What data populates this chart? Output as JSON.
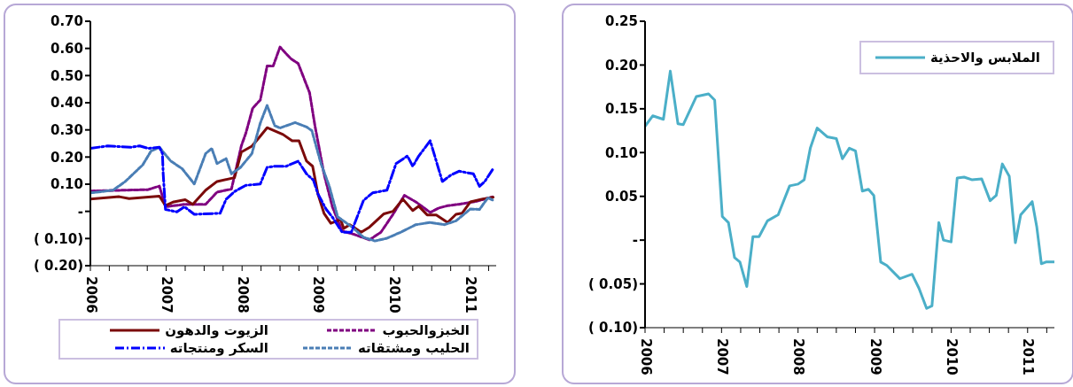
{
  "chart_data": [
    {
      "type": "line",
      "legend": "bottom",
      "xlim": [
        2006,
        2011.35
      ],
      "ylim": [
        -0.2,
        0.7
      ],
      "xticks": [
        2006,
        {
          "value": 2006.25,
          "label": null
        },
        {
          "value": 2006.5,
          "label": null
        },
        {
          "value": 2006.75,
          "label": null
        },
        2007,
        {
          "value": 2007.25,
          "label": null
        },
        {
          "value": 2007.5,
          "label": null
        },
        {
          "value": 2007.75,
          "label": null
        },
        2008,
        {
          "value": 2008.25,
          "label": null
        },
        {
          "value": 2008.5,
          "label": null
        },
        {
          "value": 2008.75,
          "label": null
        },
        2009,
        {
          "value": 2009.25,
          "label": null
        },
        {
          "value": 2009.5,
          "label": null
        },
        {
          "value": 2009.75,
          "label": null
        },
        2010,
        {
          "value": 2010.25,
          "label": null
        },
        {
          "value": 2010.5,
          "label": null
        },
        {
          "value": 2010.75,
          "label": null
        },
        2011,
        {
          "value": 2011.25,
          "label": null
        }
      ],
      "yticks": [
        {
          "value": -0.2,
          "label": "( 0.20)"
        },
        {
          "value": -0.1,
          "label": "( 0.10)"
        },
        {
          "value": 0,
          "label": "-"
        },
        {
          "value": 0.1,
          "label": "0.10"
        },
        {
          "value": 0.2,
          "label": "0.20"
        },
        {
          "value": 0.3,
          "label": "0.30"
        },
        {
          "value": 0.4,
          "label": "0.40"
        },
        {
          "value": 0.5,
          "label": "0.50"
        },
        {
          "value": 0.6,
          "label": "0.60"
        },
        {
          "value": 0.7,
          "label": "0.70"
        }
      ],
      "series": [
        {
          "name": "الخبزوالحبوب",
          "color": "#800080",
          "line_style": "dashed",
          "x": [
            2006.0,
            2006.76,
            2006.91,
            2006.99,
            2007.25,
            2007.52,
            2007.67,
            2007.86,
            2007.99,
            2008.05,
            2008.14,
            2008.24,
            2008.33,
            2008.41,
            2008.5,
            2008.64,
            2008.74,
            2008.89,
            2008.96,
            2009.08,
            2009.19,
            2009.32,
            2009.49,
            2009.68,
            2009.83,
            2009.99,
            2010.14,
            2010.29,
            2010.48,
            2010.59,
            2010.71,
            2010.86,
            2011.09,
            2011.31
          ],
          "values": [
            0.075,
            0.08,
            0.093,
            0.017,
            0.026,
            0.026,
            0.071,
            0.082,
            0.241,
            0.288,
            0.38,
            0.41,
            0.535,
            0.535,
            0.605,
            0.563,
            0.544,
            0.437,
            0.316,
            0.138,
            0.017,
            -0.072,
            -0.086,
            -0.105,
            -0.077,
            -0.011,
            0.059,
            0.035,
            -0.004,
            0.012,
            0.021,
            0.026,
            0.037,
            0.054
          ]
        },
        {
          "name": "الزيوت والدهون",
          "color": "#7b0a0a",
          "line_style": "solid",
          "x": [
            2006.0,
            2006.38,
            2006.51,
            2006.91,
            2006.99,
            2007.1,
            2007.25,
            2007.35,
            2007.52,
            2007.67,
            2007.9,
            2007.99,
            2008.13,
            2008.24,
            2008.33,
            2008.54,
            2008.66,
            2008.75,
            2008.85,
            2008.93,
            2009.0,
            2009.08,
            2009.17,
            2009.3,
            2009.34,
            2009.42,
            2009.57,
            2009.68,
            2009.87,
            2009.99,
            2010.12,
            2010.25,
            2010.33,
            2010.44,
            2010.56,
            2010.71,
            2010.82,
            2010.9,
            2011.01,
            2011.16,
            2011.31
          ],
          "values": [
            0.045,
            0.054,
            0.047,
            0.056,
            0.021,
            0.035,
            0.043,
            0.026,
            0.078,
            0.11,
            0.124,
            0.218,
            0.24,
            0.277,
            0.308,
            0.283,
            0.26,
            0.26,
            0.185,
            0.166,
            0.064,
            -0.007,
            -0.044,
            -0.03,
            -0.063,
            -0.049,
            -0.077,
            -0.058,
            -0.009,
            0,
            0.045,
            0.003,
            0.019,
            -0.013,
            -0.013,
            -0.041,
            -0.011,
            -0.007,
            0.035,
            0.045,
            0.052
          ]
        },
        {
          "name": "الحليب ومشتقاته",
          "color": "#4a7eb5",
          "line_style": "dashed",
          "x": [
            2006.0,
            2006.3,
            2006.46,
            2006.69,
            2006.8,
            2006.91,
            2007.06,
            2007.21,
            2007.37,
            2007.52,
            2007.6,
            2007.67,
            2007.79,
            2007.86,
            2007.98,
            2008.13,
            2008.24,
            2008.33,
            2008.43,
            2008.5,
            2008.7,
            2008.85,
            2008.92,
            2009.04,
            2009.15,
            2009.26,
            2009.45,
            2009.6,
            2009.75,
            2009.9,
            2010.09,
            2010.29,
            2010.48,
            2010.67,
            2010.82,
            2011.01,
            2011.13,
            2011.24,
            2011.31
          ],
          "values": [
            0.068,
            0.078,
            0.11,
            0.171,
            0.222,
            0.236,
            0.185,
            0.157,
            0.101,
            0.213,
            0.232,
            0.176,
            0.194,
            0.138,
            0.162,
            0.213,
            0.325,
            0.39,
            0.316,
            0.307,
            0.327,
            0.311,
            0.297,
            0.176,
            0.092,
            -0.02,
            -0.058,
            -0.095,
            -0.109,
            -0.1,
            -0.077,
            -0.049,
            -0.041,
            -0.049,
            -0.035,
            0.009,
            0.007,
            0.05,
            0.041
          ]
        },
        {
          "name": "السكر ومنتجاته",
          "color": "#0000ff",
          "line_style": "dashdot",
          "x": [
            2006.0,
            2006.23,
            2006.53,
            2006.65,
            2006.76,
            2006.91,
            2006.95,
            2006.96,
            2006.99,
            2007.14,
            2007.24,
            2007.37,
            2007.71,
            2007.79,
            2007.9,
            2008.05,
            2008.24,
            2008.33,
            2008.43,
            2008.58,
            2008.74,
            2008.85,
            2008.94,
            2009.0,
            2009.11,
            2009.19,
            2009.32,
            2009.44,
            2009.53,
            2009.6,
            2009.72,
            2009.91,
            2010.03,
            2010.18,
            2010.25,
            2010.33,
            2010.48,
            2010.54,
            2010.64,
            2010.75,
            2010.86,
            2011.05,
            2011.13,
            2011.2,
            2011.31
          ],
          "values": [
            0.232,
            0.241,
            0.236,
            0.241,
            0.232,
            0.236,
            0.213,
            0.138,
            0.007,
            -0.002,
            0.017,
            -0.011,
            -0.007,
            0.045,
            0.073,
            0.096,
            0.101,
            0.162,
            0.166,
            0.166,
            0.185,
            0.138,
            0.115,
            0.064,
            0.007,
            -0.021,
            -0.077,
            -0.077,
            -0.011,
            0.04,
            0.068,
            0.078,
            0.176,
            0.204,
            0.166,
            0.204,
            0.26,
            0.204,
            0.11,
            0.133,
            0.148,
            0.138,
            0.092,
            0.11,
            0.157
          ]
        }
      ]
    },
    {
      "type": "line",
      "legend": "top right",
      "xlim": [
        2006,
        2011.35
      ],
      "ylim": [
        -0.1,
        0.25
      ],
      "xticks": [
        2006,
        {
          "value": 2006.25,
          "label": null
        },
        {
          "value": 2006.5,
          "label": null
        },
        {
          "value": 2006.75,
          "label": null
        },
        2007,
        {
          "value": 2007.25,
          "label": null
        },
        {
          "value": 2007.5,
          "label": null
        },
        {
          "value": 2007.75,
          "label": null
        },
        2008,
        {
          "value": 2008.25,
          "label": null
        },
        {
          "value": 2008.5,
          "label": null
        },
        {
          "value": 2008.75,
          "label": null
        },
        2009,
        {
          "value": 2009.25,
          "label": null
        },
        {
          "value": 2009.5,
          "label": null
        },
        {
          "value": 2009.75,
          "label": null
        },
        2010,
        {
          "value": 2010.25,
          "label": null
        },
        {
          "value": 2010.5,
          "label": null
        },
        {
          "value": 2010.75,
          "label": null
        },
        2011,
        {
          "value": 2011.25,
          "label": null
        }
      ],
      "yticks": [
        {
          "value": -0.1,
          "label": "( 0.10)"
        },
        {
          "value": -0.05,
          "label": "( 0.05)"
        },
        {
          "value": 0,
          "label": "-"
        },
        {
          "value": 0.05,
          "label": "0.05"
        },
        {
          "value": 0.1,
          "label": "0.10"
        },
        {
          "value": 0.15,
          "label": "0.15"
        },
        {
          "value": 0.2,
          "label": "0.20"
        },
        {
          "value": 0.25,
          "label": "0.25"
        }
      ],
      "series": [
        {
          "name": "الملابس والاحذية",
          "color": "#4bafc8",
          "line_style": "solid",
          "x": [
            2006.0,
            2006.1,
            2006.24,
            2006.33,
            2006.43,
            2006.5,
            2006.67,
            2006.83,
            2006.91,
            2007.01,
            2007.09,
            2007.17,
            2007.24,
            2007.33,
            2007.41,
            2007.49,
            2007.6,
            2007.74,
            2007.89,
            2008.0,
            2008.08,
            2008.16,
            2008.25,
            2008.38,
            2008.5,
            2008.58,
            2008.67,
            2008.75,
            2008.84,
            2008.92,
            2008.99,
            2009.08,
            2009.16,
            2009.33,
            2009.49,
            2009.58,
            2009.68,
            2009.75,
            2009.84,
            2009.9,
            2010.0,
            2010.08,
            2010.17,
            2010.27,
            2010.4,
            2010.51,
            2010.59,
            2010.67,
            2010.76,
            2010.84,
            2010.91,
            2011.06,
            2011.12,
            2011.18,
            2011.24,
            2011.35
          ],
          "values": [
            0.13,
            0.142,
            0.138,
            0.193,
            0.133,
            0.132,
            0.164,
            0.167,
            0.16,
            0.027,
            0.02,
            -0.02,
            -0.025,
            -0.053,
            0.004,
            0.004,
            0.022,
            0.029,
            0.062,
            0.064,
            0.069,
            0.105,
            0.128,
            0.118,
            0.116,
            0.093,
            0.105,
            0.102,
            0.056,
            0.058,
            0.051,
            -0.025,
            -0.029,
            -0.044,
            -0.039,
            -0.055,
            -0.078,
            -0.075,
            0.02,
            0,
            -0.002,
            0.071,
            0.072,
            0.069,
            0.07,
            0.045,
            0.051,
            0.087,
            0.073,
            -0.003,
            0.029,
            0.044,
            0.015,
            -0.027,
            -0.025,
            -0.025
          ]
        }
      ]
    }
  ]
}
